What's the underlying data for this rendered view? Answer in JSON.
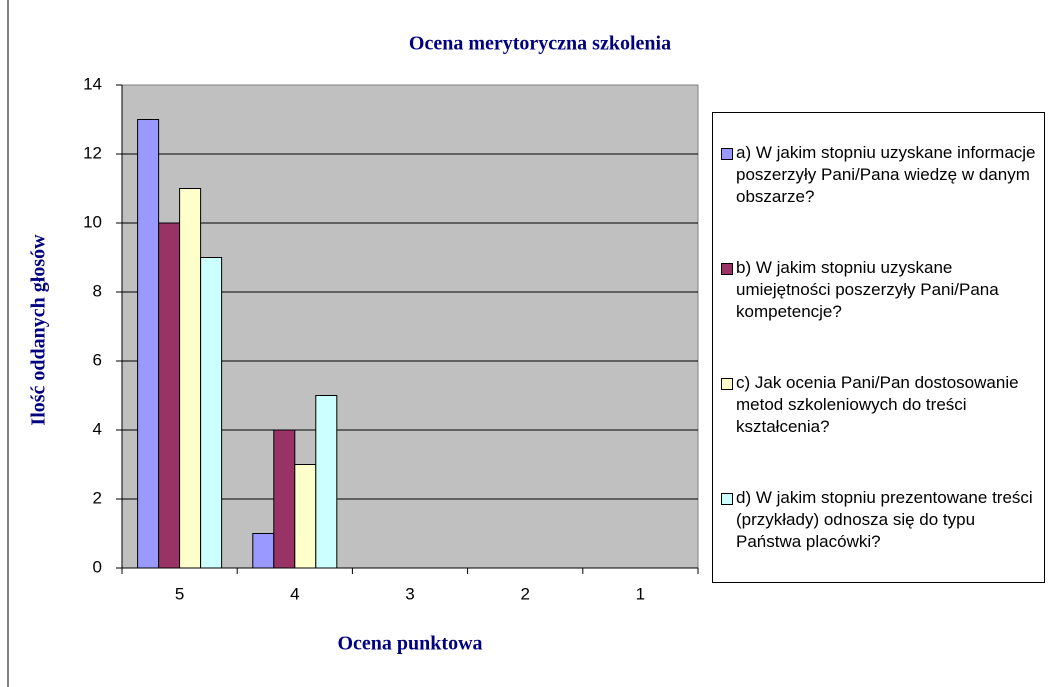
{
  "chart_data": {
    "type": "bar",
    "title": "Ocena merytoryczna szkolenia",
    "xlabel": "Ocena punktowa",
    "ylabel": "Ilość oddanych głosów",
    "categories": [
      "5",
      "4",
      "3",
      "2",
      "1"
    ],
    "series": [
      {
        "name": "a) W jakim stopniu uzyskane informacje poszerzyły Pani/Pana wiedzę w danym obszarze?",
        "color": "#9999ff",
        "values": [
          13,
          1,
          0,
          0,
          0
        ]
      },
      {
        "name": "b) W jakim stopniu uzyskane umiejętności poszerzyły Pani/Pana kompetencje?",
        "color": "#993366",
        "values": [
          10,
          4,
          0,
          0,
          0
        ]
      },
      {
        "name": "c) Jak ocenia Pani/Pan dostosowanie metod szkoleniowych do treści kształcenia?",
        "color": "#ffffcc",
        "values": [
          11,
          3,
          0,
          0,
          0
        ]
      },
      {
        "name": "d) W jakim stopniu prezentowane treści (przykłady) odnosza się do typu Państwa placówki?",
        "color": "#ccffff",
        "values": [
          9,
          5,
          0,
          0,
          0
        ]
      }
    ],
    "ylim": [
      0,
      14
    ],
    "yticks": [
      0,
      2,
      4,
      6,
      8,
      10,
      12,
      14
    ],
    "grid": true,
    "plot_background": "#c0c0c0",
    "legend": "right"
  }
}
